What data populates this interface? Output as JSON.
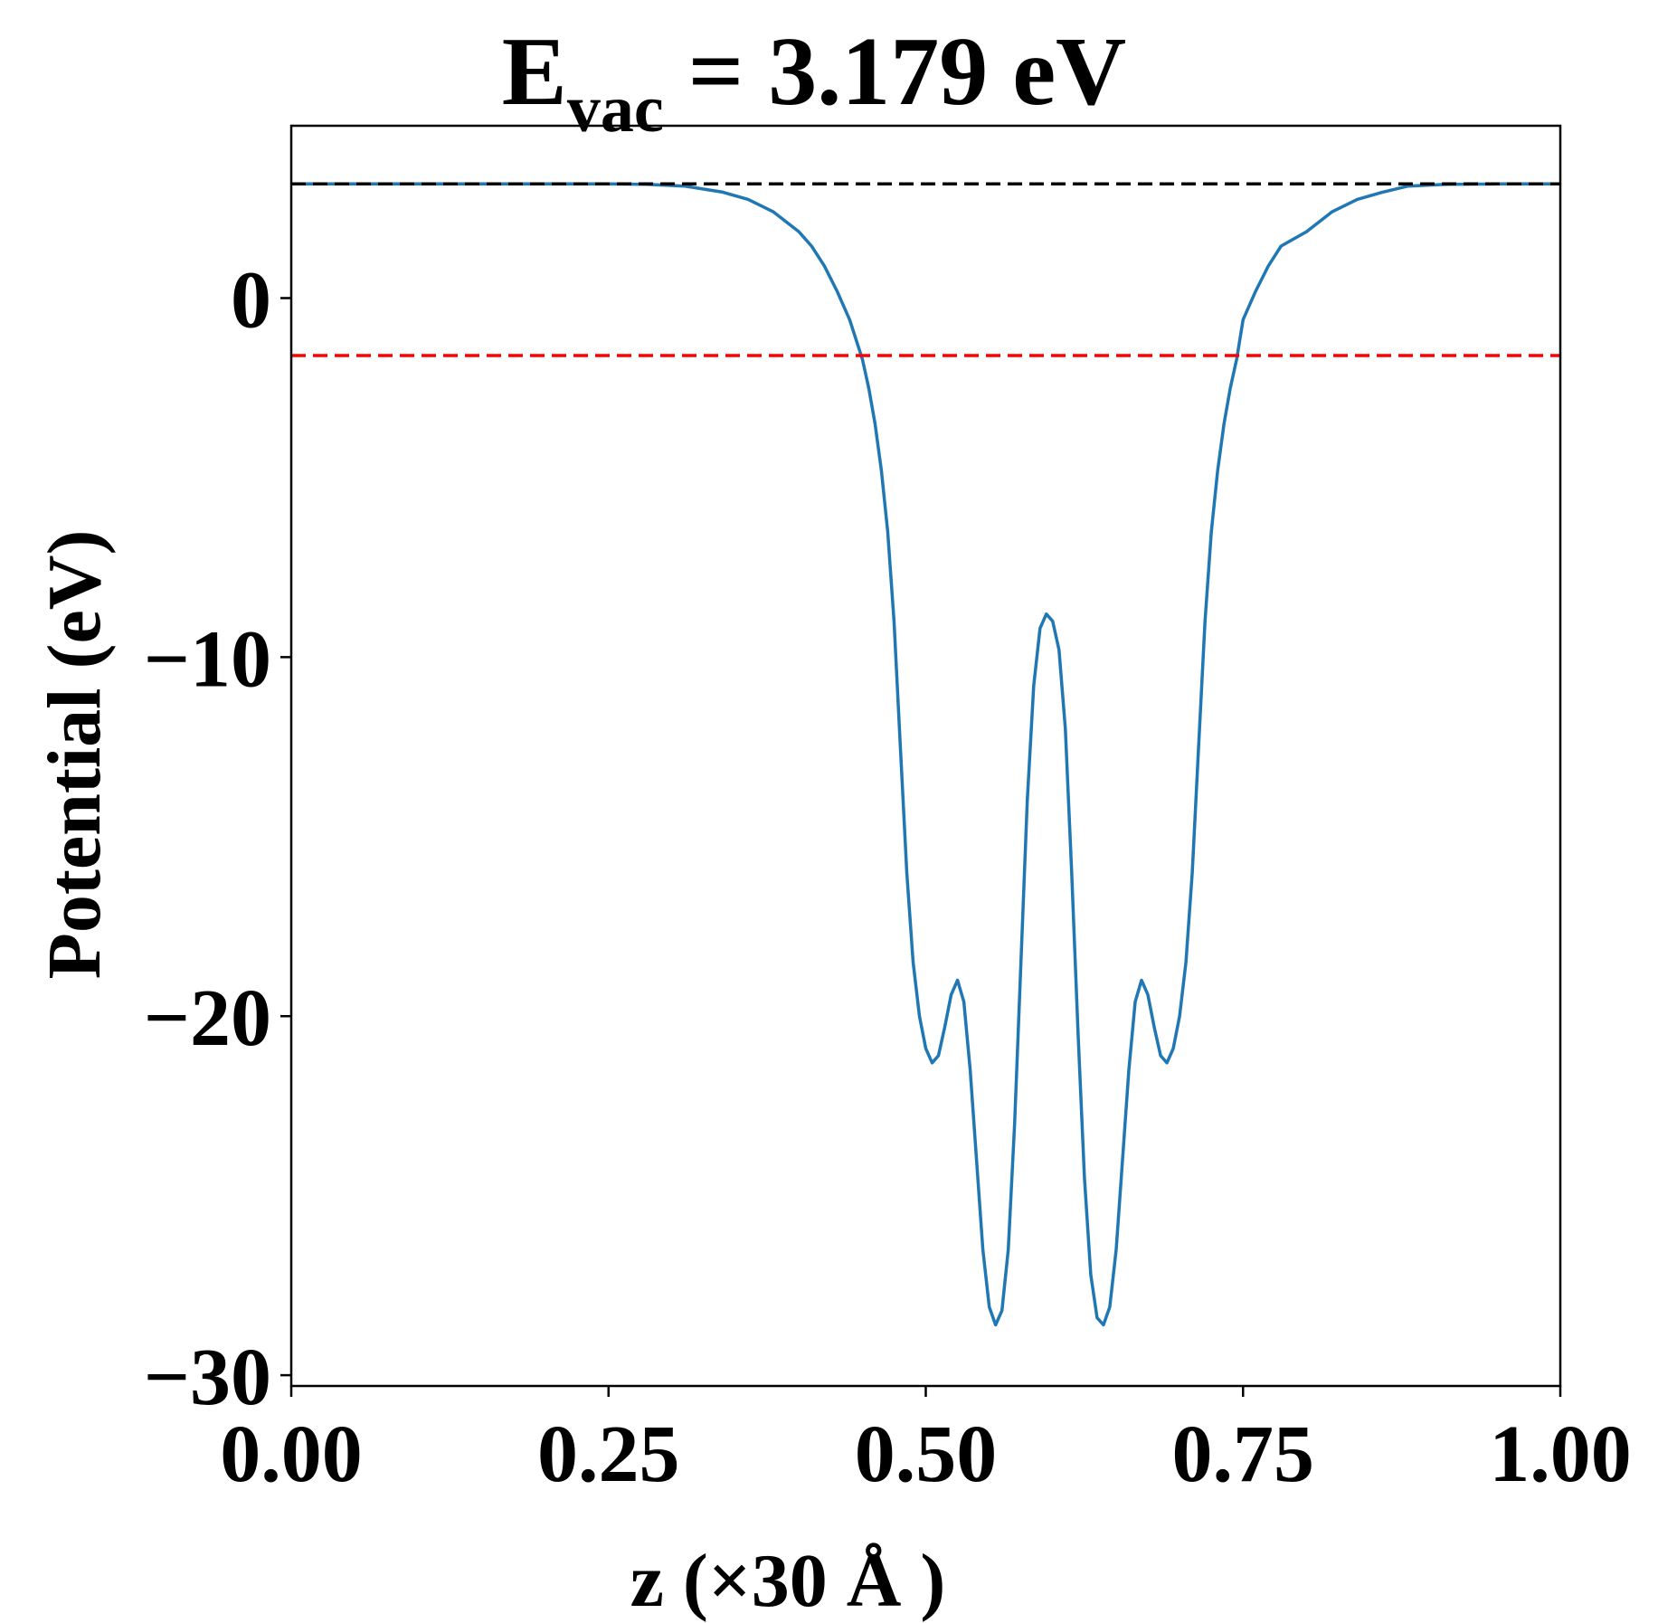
{
  "chart_data": {
    "type": "line",
    "title": {
      "main": "E",
      "subscript": "vac",
      "suffix": " = 3.179 eV"
    },
    "xlabel": "z (×30 Å )",
    "ylabel": "Potential (eV)",
    "xlim": [
      0,
      1
    ],
    "ylim": [
      -30.3,
      4.8
    ],
    "x_ticks": [
      0,
      0.25,
      0.5,
      0.75,
      1
    ],
    "x_tick_labels": [
      "0.00",
      "0.25",
      "0.50",
      "0.75",
      "1.00"
    ],
    "y_ticks": [
      -30,
      -20,
      -10,
      0
    ],
    "y_tick_labels": [
      "−30",
      "−20",
      "−10",
      "0"
    ],
    "grid": false,
    "series": [
      {
        "color": "#1f77b4",
        "style": "solid",
        "x": [
          0,
          0.05,
          0.1,
          0.15,
          0.2,
          0.25,
          0.28,
          0.31,
          0.34,
          0.36,
          0.38,
          0.4,
          0.41,
          0.42,
          0.43,
          0.44,
          0.45,
          0.455,
          0.46,
          0.465,
          0.47,
          0.475,
          0.48,
          0.485,
          0.49,
          0.495,
          0.5,
          0.505,
          0.51,
          0.515,
          0.52,
          0.525,
          0.53,
          0.535,
          0.54,
          0.545,
          0.55,
          0.555,
          0.56,
          0.565,
          0.57,
          0.575,
          0.58,
          0.585,
          0.59,
          0.595,
          0.6,
          0.605,
          0.61,
          0.615,
          0.62,
          0.625,
          0.63,
          0.635,
          0.64,
          0.645,
          0.65,
          0.655,
          0.66,
          0.665,
          0.67,
          0.675,
          0.68,
          0.685,
          0.69,
          0.695,
          0.7,
          0.705,
          0.71,
          0.715,
          0.72,
          0.725,
          0.73,
          0.735,
          0.74,
          0.745,
          0.75,
          0.76,
          0.77,
          0.78,
          0.8,
          0.82,
          0.84,
          0.86,
          0.88,
          0.91,
          0.95,
          1.0
        ],
        "y": [
          3.18,
          3.18,
          3.18,
          3.18,
          3.18,
          3.18,
          3.17,
          3.12,
          2.95,
          2.75,
          2.4,
          1.85,
          1.45,
          0.9,
          0.2,
          -0.6,
          -1.7,
          -2.5,
          -3.5,
          -4.8,
          -6.5,
          -9.0,
          -12.5,
          -16.0,
          -18.5,
          -20.0,
          -20.9,
          -21.3,
          -21.1,
          -20.3,
          -19.4,
          -19.0,
          -19.6,
          -21.5,
          -24.0,
          -26.5,
          -28.1,
          -28.6,
          -28.2,
          -26.5,
          -23.0,
          -18.5,
          -14.0,
          -10.8,
          -9.2,
          -8.8,
          -9.0,
          -9.8,
          -12.0,
          -16.0,
          -20.5,
          -24.5,
          -27.2,
          -28.4,
          -28.6,
          -28.1,
          -26.5,
          -24.0,
          -21.5,
          -19.6,
          -19.0,
          -19.4,
          -20.3,
          -21.1,
          -21.3,
          -20.9,
          -20.0,
          -18.5,
          -16.0,
          -12.5,
          -9.0,
          -6.5,
          -4.8,
          -3.5,
          -2.5,
          -1.7,
          -0.6,
          0.2,
          0.9,
          1.45,
          1.85,
          2.4,
          2.75,
          2.95,
          3.12,
          3.17,
          3.18,
          3.18
        ]
      },
      {
        "color": "#000000",
        "style": "dashed",
        "x": [
          0,
          1
        ],
        "y": [
          3.179,
          3.179
        ]
      },
      {
        "color": "#ff0000",
        "style": "dashed",
        "x": [
          0,
          1
        ],
        "y": [
          -1.6,
          -1.6
        ]
      }
    ]
  }
}
